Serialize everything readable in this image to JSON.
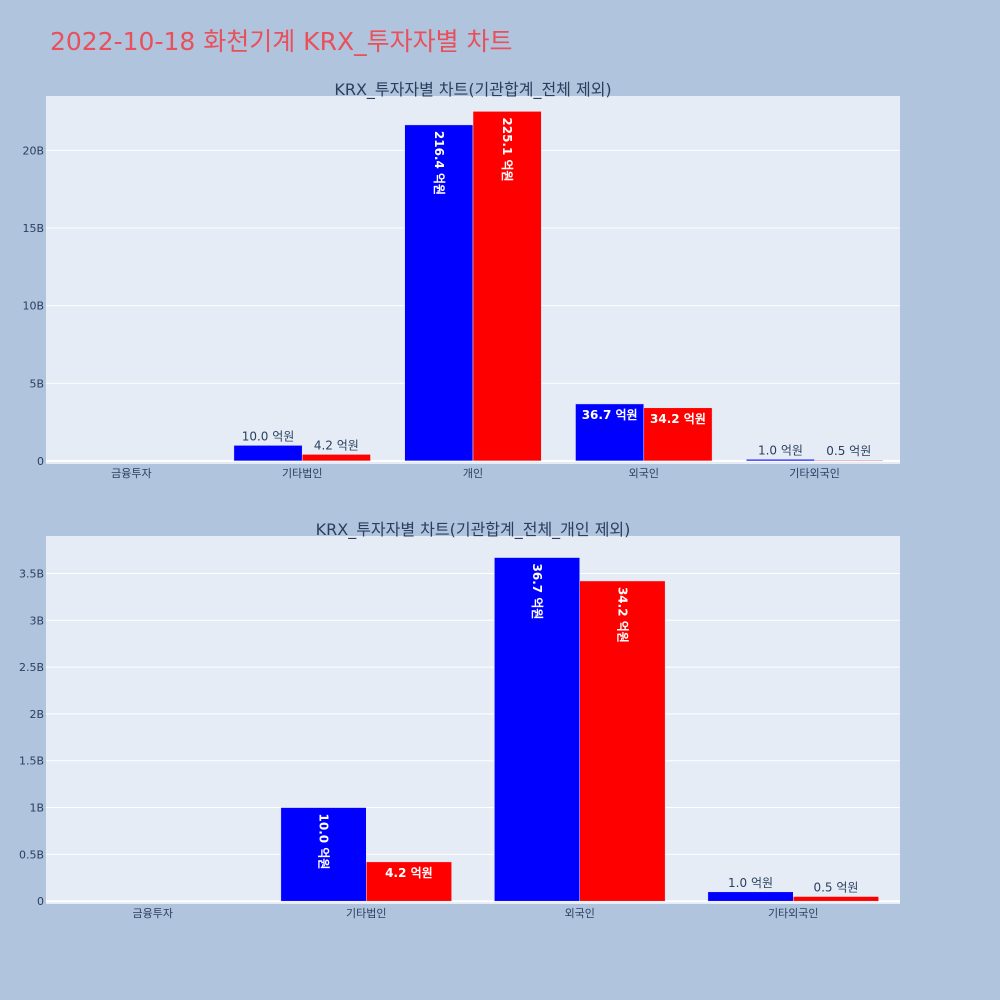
{
  "title": "2022-10-18 화천기계 KRX_투자자별 차트",
  "colors": {
    "background": "#b0c4de",
    "plot_bg": "#e5ecf6",
    "series1": "#0000ff",
    "series2": "#ff0000",
    "title": "#e8505b",
    "text": "#2a3f5f"
  },
  "chart_data": [
    {
      "type": "bar",
      "title": "KRX_투자자별 차트(기관합계_전체 제외)",
      "categories": [
        "금융투자",
        "기타법인",
        "개인",
        "외국인",
        "기타외국인"
      ],
      "series": [
        {
          "values": [
            0,
            1000000000,
            21640000000,
            3670000000,
            100000000
          ],
          "labels": [
            "",
            "10.0 억원",
            "216.4 억원",
            "36.7 억원",
            "1.0 억원"
          ]
        },
        {
          "values": [
            0,
            420000000,
            22510000000,
            3420000000,
            50000000
          ],
          "labels": [
            "",
            "4.2 억원",
            "225.1 억원",
            "34.2 억원",
            "0.5 억원"
          ]
        }
      ],
      "yticks": [
        0,
        5000000000,
        10000000000,
        15000000000,
        20000000000
      ],
      "ytick_labels": [
        "0",
        "5B",
        "10B",
        "15B",
        "20B"
      ],
      "ylim": [
        -200000000,
        23500000000
      ],
      "grid": true
    },
    {
      "type": "bar",
      "title": "KRX_투자자별 차트(기관합계_전체_개인 제외)",
      "categories": [
        "금융투자",
        "기타법인",
        "외국인",
        "기타외국인"
      ],
      "series": [
        {
          "values": [
            0,
            1000000000,
            3670000000,
            100000000
          ],
          "labels": [
            "",
            "10.0 억원",
            "36.7 억원",
            "1.0 억원"
          ]
        },
        {
          "values": [
            0,
            420000000,
            3420000000,
            50000000
          ],
          "labels": [
            "",
            "4.2 억원",
            "34.2 억원",
            "0.5 억원"
          ]
        }
      ],
      "yticks": [
        0,
        500000000,
        1000000000,
        1500000000,
        2000000000,
        2500000000,
        3000000000,
        3500000000
      ],
      "ytick_labels": [
        "0",
        "0.5B",
        "1B",
        "1.5B",
        "2B",
        "2.5B",
        "3B",
        "3.5B"
      ],
      "ylim": [
        -30000000,
        3900000000
      ],
      "grid": true
    }
  ]
}
